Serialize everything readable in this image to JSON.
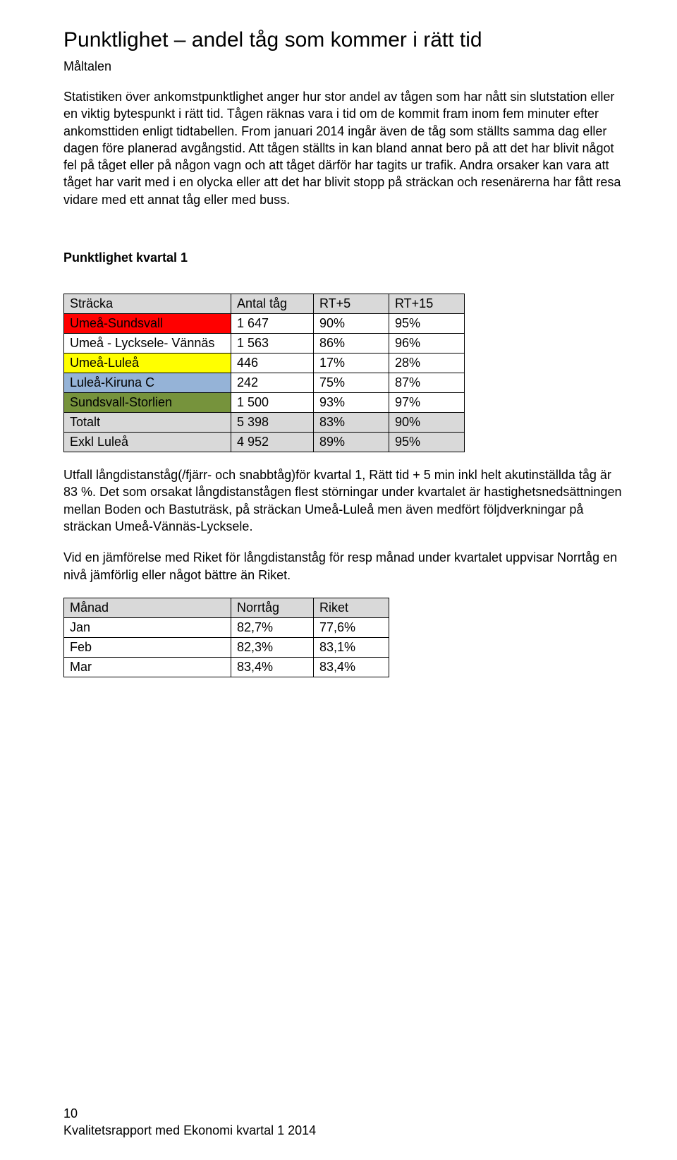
{
  "title": "Punktlighet – andel tåg som kommer i rätt tid",
  "subtitle": "Måltalen",
  "paragraph1": "Statistiken över ankomstpunktlighet anger hur stor andel av tågen som har nått sin slutstation eller en viktig bytespunkt i rätt tid. Tågen räknas vara i tid om de kommit fram inom fem minuter efter ankomsttiden enligt tidtabellen. From januari 2014 ingår även de tåg som ställts samma dag eller dagen före planerad avgångstid. Att tågen ställts in kan bland annat bero på att det har blivit något fel på tåget eller på någon vagn och att tåget därför har tagits ur trafik. Andra orsaker kan vara att tåget har varit med i en olycka eller att det har blivit stopp på sträckan och resenärerna har fått resa vidare med ett annat tåg eller med buss.",
  "section_head": "Punktlighet kvartal 1",
  "table1": {
    "header_bg": "#d9d9d9",
    "columns": [
      "Sträcka",
      "Antal tåg",
      "RT+5",
      "RT+15"
    ],
    "col_widths": [
      "220px",
      "100px",
      "90px",
      "90px"
    ],
    "rows": [
      {
        "bg": "#ff0000",
        "cells": [
          "Umeå-Sundsvall",
          "1 647",
          "90%",
          "95%"
        ]
      },
      {
        "bg": "#ffffff",
        "cells": [
          "Umeå - Lycksele- Vännäs",
          "1 563",
          "86%",
          "96%"
        ]
      },
      {
        "bg": "#ffff00",
        "cells": [
          "Umeå-Luleå",
          "446",
          "17%",
          "28%"
        ]
      },
      {
        "bg": "#95b3d7",
        "cells": [
          "Luleå-Kiruna C",
          "242",
          "75%",
          "87%"
        ]
      },
      {
        "bg": "#76933c",
        "cells": [
          "Sundsvall-Storlien",
          "1 500",
          "93%",
          "97%"
        ]
      },
      {
        "bg": "#d9d9d9",
        "cells": [
          "Totalt",
          "5 398",
          "83%",
          "90%"
        ]
      },
      {
        "bg": "#d9d9d9",
        "cells": [
          "Exkl Luleå",
          "4 952",
          "89%",
          "95%"
        ]
      }
    ]
  },
  "paragraph2": "Utfall långdistanståg(/fjärr- och snabbtåg)för kvartal 1, Rätt tid + 5 min inkl helt akutinställda tåg är 83 %. Det som orsakat långdistanstågen flest störningar under kvartalet är hastighetsnedsättningen mellan Boden och Bastuträsk, på sträckan Umeå-Luleå men även medfört följdverkningar på sträckan Umeå-Vännäs-Lycksele.",
  "paragraph3": "Vid en jämförelse med Riket för långdistanståg för resp månad under kvartalet uppvisar Norrtåg en nivå jämförlig eller något bättre än Riket.",
  "table2": {
    "header_bg": "#d9d9d9",
    "columns": [
      "Månad",
      "Norrtåg",
      "Riket"
    ],
    "col_widths": [
      "220px",
      "100px",
      "90px"
    ],
    "rows": [
      {
        "bg": "#ffffff",
        "cells": [
          "Jan",
          "82,7%",
          "77,6%"
        ]
      },
      {
        "bg": "#ffffff",
        "cells": [
          "Feb",
          "82,3%",
          "83,1%"
        ]
      },
      {
        "bg": "#ffffff",
        "cells": [
          "Mar",
          "83,4%",
          "83,4%"
        ]
      }
    ]
  },
  "footer_line1": "10",
  "footer_line2": "Kvalitetsrapport med Ekonomi kvartal 1 2014"
}
